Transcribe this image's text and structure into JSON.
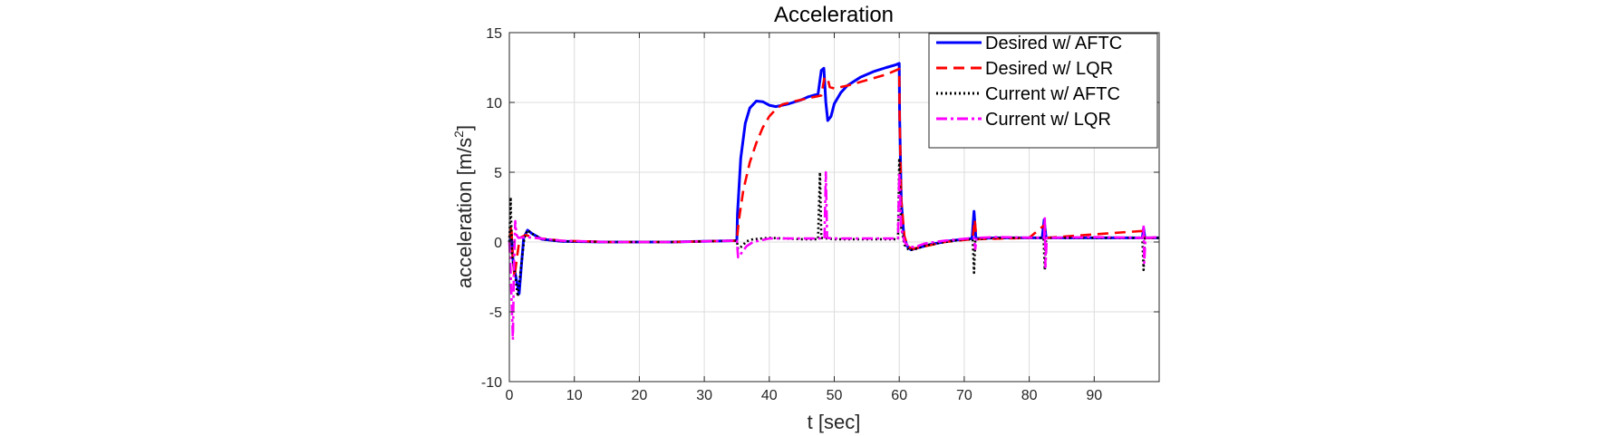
{
  "chart_data": {
    "type": "line",
    "title": "Acceleration",
    "xlabel": "t [sec]",
    "ylabel_main": "acceleration [m/s",
    "ylabel_sup": "2",
    "ylabel_end": "]",
    "xlim": [
      0,
      100
    ],
    "ylim": [
      -10,
      15
    ],
    "xticks": [
      0,
      10,
      20,
      30,
      40,
      50,
      60,
      70,
      80,
      90
    ],
    "yticks": [
      -10,
      -5,
      0,
      5,
      10,
      15
    ],
    "grid": true,
    "legend_position": "top-right",
    "series": [
      {
        "name": "Desired w/ AFTC",
        "color": "#0000ff",
        "style": "solid",
        "points": [
          [
            0,
            0
          ],
          [
            0.3,
            0.5
          ],
          [
            0.6,
            -1.5
          ],
          [
            1,
            -2.5
          ],
          [
            1.5,
            -3.7
          ],
          [
            1.8,
            -2
          ],
          [
            2.2,
            0.3
          ],
          [
            2.8,
            0.85
          ],
          [
            3.5,
            0.6
          ],
          [
            5,
            0.2
          ],
          [
            8,
            0.05
          ],
          [
            15,
            0
          ],
          [
            25,
            0
          ],
          [
            30,
            0.05
          ],
          [
            35,
            0.1
          ],
          [
            35.1,
            2
          ],
          [
            35.6,
            6
          ],
          [
            36.3,
            8.5
          ],
          [
            37,
            9.6
          ],
          [
            38,
            10.1
          ],
          [
            39,
            10.05
          ],
          [
            40,
            9.8
          ],
          [
            41,
            9.7
          ],
          [
            43,
            9.9
          ],
          [
            45,
            10.2
          ],
          [
            46,
            10.4
          ],
          [
            47.5,
            10.6
          ],
          [
            48,
            12.3
          ],
          [
            48.4,
            12.45
          ],
          [
            48.7,
            10
          ],
          [
            49,
            8.7
          ],
          [
            49.5,
            9
          ],
          [
            50,
            9.9
          ],
          [
            51,
            10.7
          ],
          [
            52,
            11.2
          ],
          [
            54,
            11.8
          ],
          [
            56,
            12.2
          ],
          [
            58,
            12.5
          ],
          [
            59.5,
            12.7
          ],
          [
            60,
            12.8
          ],
          [
            60.05,
            9
          ],
          [
            60.3,
            3
          ],
          [
            60.7,
            0.5
          ],
          [
            61.2,
            -0.3
          ],
          [
            61.8,
            -0.55
          ],
          [
            63,
            -0.4
          ],
          [
            65,
            -0.15
          ],
          [
            68,
            0.1
          ],
          [
            70,
            0.2
          ],
          [
            71.2,
            0.25
          ],
          [
            71.5,
            2.2
          ],
          [
            71.8,
            0.25
          ],
          [
            75,
            0.3
          ],
          [
            82,
            0.3
          ],
          [
            82.3,
            1.6
          ],
          [
            82.6,
            0.3
          ],
          [
            90,
            0.3
          ],
          [
            97.4,
            0.3
          ],
          [
            97.6,
            1
          ],
          [
            97.8,
            0.3
          ],
          [
            100,
            0.3
          ]
        ]
      },
      {
        "name": "Desired w/ LQR",
        "color": "#ff0000",
        "style": "dashed",
        "points": [
          [
            0,
            0.3
          ],
          [
            0.3,
            1.2
          ],
          [
            0.5,
            -1
          ],
          [
            0.8,
            -2.5
          ],
          [
            1.2,
            -1
          ],
          [
            1.6,
            0.3
          ],
          [
            2.5,
            0.5
          ],
          [
            4,
            0.3
          ],
          [
            8,
            0.1
          ],
          [
            15,
            0
          ],
          [
            25,
            0
          ],
          [
            30,
            0.05
          ],
          [
            35,
            0.1
          ],
          [
            35.3,
            1.5
          ],
          [
            36,
            3.7
          ],
          [
            37,
            5.7
          ],
          [
            38,
            7.1
          ],
          [
            39,
            8.2
          ],
          [
            40,
            9
          ],
          [
            41,
            9.5
          ],
          [
            42,
            9.85
          ],
          [
            44,
            10.1
          ],
          [
            46,
            10.3
          ],
          [
            48,
            10.5
          ],
          [
            48.5,
            11.8
          ],
          [
            49,
            11.7
          ],
          [
            49.3,
            11.1
          ],
          [
            50,
            11
          ],
          [
            52,
            11.2
          ],
          [
            55,
            11.6
          ],
          [
            58,
            12
          ],
          [
            60,
            12.4
          ],
          [
            60.05,
            9
          ],
          [
            60.3,
            3
          ],
          [
            60.8,
            0.4
          ],
          [
            61.3,
            -0.3
          ],
          [
            62,
            -0.5
          ],
          [
            64,
            -0.3
          ],
          [
            67,
            0
          ],
          [
            70,
            0.15
          ],
          [
            71.3,
            0.2
          ],
          [
            71.6,
            1.6
          ],
          [
            71.9,
            0.2
          ],
          [
            80,
            0.3
          ],
          [
            82.3,
            1.2
          ],
          [
            82.6,
            0.3
          ],
          [
            97.6,
            0.8
          ],
          [
            97.8,
            0.3
          ],
          [
            100,
            0.3
          ]
        ]
      },
      {
        "name": "Current w/ AFTC",
        "color": "#000000",
        "style": "dotted",
        "points": [
          [
            0,
            0
          ],
          [
            0.2,
            3.2
          ],
          [
            0.4,
            -1
          ],
          [
            0.8,
            -2
          ],
          [
            1.3,
            -3.9
          ],
          [
            1.8,
            -1.8
          ],
          [
            2.3,
            0.3
          ],
          [
            2.8,
            0.85
          ],
          [
            3.5,
            0.6
          ],
          [
            5,
            0.2
          ],
          [
            8,
            0.05
          ],
          [
            15,
            0
          ],
          [
            25,
            0
          ],
          [
            30,
            0.05
          ],
          [
            35,
            0.1
          ],
          [
            35.2,
            -0.5
          ],
          [
            35.8,
            -0.3
          ],
          [
            36.5,
            0.05
          ],
          [
            37.5,
            0.2
          ],
          [
            40,
            0.3
          ],
          [
            45,
            0.2
          ],
          [
            47.5,
            0.2
          ],
          [
            47.8,
            5
          ],
          [
            48,
            0.3
          ],
          [
            50,
            0.2
          ],
          [
            55,
            0.2
          ],
          [
            59.8,
            0.2
          ],
          [
            60,
            6
          ],
          [
            60.3,
            1
          ],
          [
            60.8,
            -0.2
          ],
          [
            61.5,
            -0.6
          ],
          [
            62.5,
            -0.5
          ],
          [
            64,
            -0.25
          ],
          [
            67,
            0
          ],
          [
            70,
            0.2
          ],
          [
            71.3,
            0.2
          ],
          [
            71.5,
            -2.2
          ],
          [
            71.7,
            0.2
          ],
          [
            75,
            0.3
          ],
          [
            82.2,
            0.3
          ],
          [
            82.4,
            -2
          ],
          [
            82.6,
            0.3
          ],
          [
            90,
            0.3
          ],
          [
            97.4,
            0.3
          ],
          [
            97.6,
            -2
          ],
          [
            97.8,
            0.3
          ],
          [
            100,
            0.3
          ]
        ]
      },
      {
        "name": "Current w/ LQR",
        "color": "#ff00ff",
        "style": "dashdot",
        "points": [
          [
            0,
            0
          ],
          [
            0.2,
            -2
          ],
          [
            0.4,
            -5
          ],
          [
            0.55,
            -7
          ],
          [
            0.7,
            -2
          ],
          [
            0.9,
            1.5
          ],
          [
            1.1,
            0.5
          ],
          [
            1.4,
            0.3
          ],
          [
            2.5,
            0.35
          ],
          [
            4,
            0.3
          ],
          [
            8,
            0.1
          ],
          [
            15,
            0
          ],
          [
            25,
            0
          ],
          [
            30,
            0.05
          ],
          [
            35,
            0.1
          ],
          [
            35.2,
            -1.1
          ],
          [
            35.7,
            -0.8
          ],
          [
            36.5,
            -0.3
          ],
          [
            37.5,
            0
          ],
          [
            40,
            0.25
          ],
          [
            45,
            0.25
          ],
          [
            48.5,
            0.25
          ],
          [
            48.7,
            5
          ],
          [
            48.9,
            0.3
          ],
          [
            50,
            0.25
          ],
          [
            55,
            0.25
          ],
          [
            59.8,
            0.25
          ],
          [
            60,
            5
          ],
          [
            60.3,
            1
          ],
          [
            60.8,
            0
          ],
          [
            61.5,
            -0.35
          ],
          [
            62.5,
            -0.35
          ],
          [
            64,
            -0.1
          ],
          [
            67,
            0.1
          ],
          [
            71.5,
            0.3
          ],
          [
            71.7,
            -0.5
          ],
          [
            71.9,
            0.3
          ],
          [
            75,
            0.35
          ],
          [
            82.3,
            0.3
          ],
          [
            82.4,
            1.7
          ],
          [
            82.5,
            -1.8
          ],
          [
            82.7,
            0.3
          ],
          [
            90,
            0.35
          ],
          [
            97.5,
            0.3
          ],
          [
            97.6,
            1.2
          ],
          [
            97.7,
            -1.5
          ],
          [
            97.9,
            0.3
          ],
          [
            100,
            0.35
          ]
        ]
      }
    ]
  }
}
